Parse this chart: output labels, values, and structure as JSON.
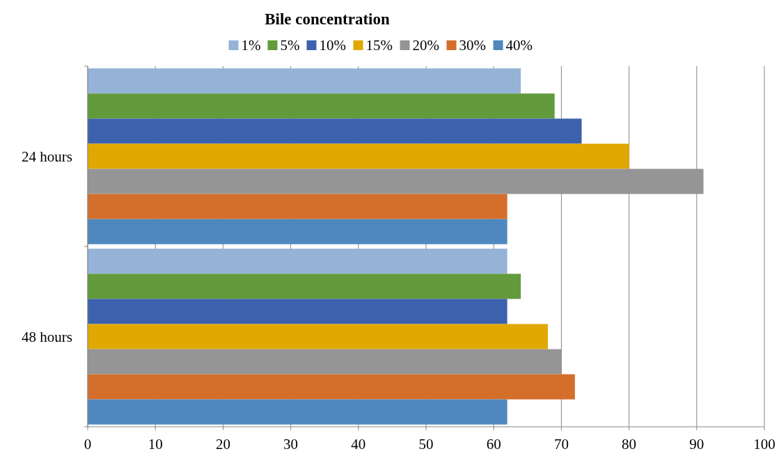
{
  "chart_data": {
    "type": "bar",
    "orientation": "horizontal",
    "title": "Bile concentration",
    "categories": [
      "24 hours",
      "48 hours"
    ],
    "series": [
      {
        "name": "1%",
        "color": "#95b3d7",
        "values": [
          64,
          62
        ]
      },
      {
        "name": "5%",
        "color": "#629a3c",
        "values": [
          69,
          64
        ]
      },
      {
        "name": "10%",
        "color": "#3c62ad",
        "values": [
          73,
          62
        ]
      },
      {
        "name": "15%",
        "color": "#e0a800",
        "values": [
          80,
          68
        ]
      },
      {
        "name": "20%",
        "color": "#959595",
        "values": [
          91,
          70
        ]
      },
      {
        "name": "30%",
        "color": "#d46e2b",
        "values": [
          62,
          72
        ]
      },
      {
        "name": "40%",
        "color": "#4f88be",
        "values": [
          62,
          62
        ]
      }
    ],
    "xlim": [
      0,
      100
    ],
    "xticks": [
      0,
      10,
      20,
      30,
      40,
      50,
      60,
      70,
      80,
      90,
      100
    ],
    "grid": "x",
    "legend": "top"
  }
}
